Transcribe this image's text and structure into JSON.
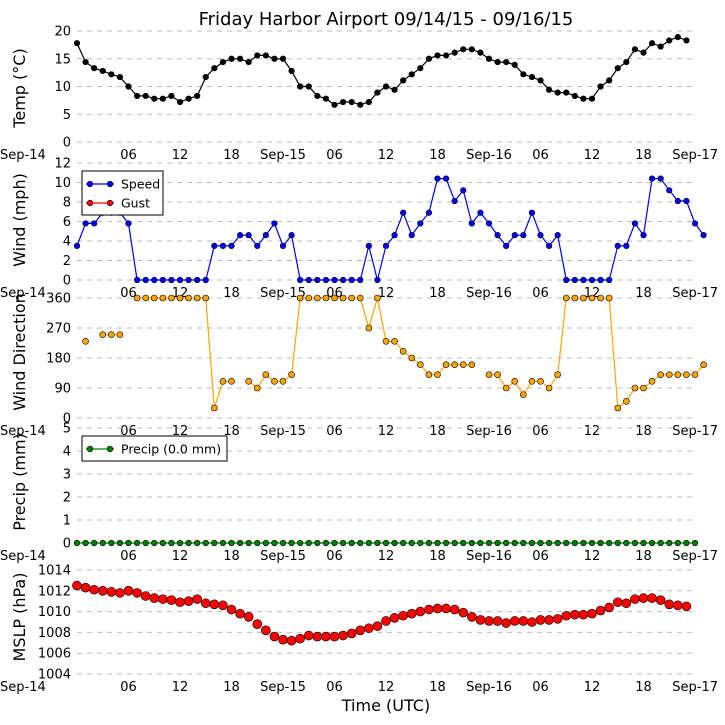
{
  "title": "Friday Harbor Airport 09/14/15 - 09/16/15",
  "xlabel": "Time (UTC)",
  "x_tick_labels": [
    "Sep-14",
    "06",
    "12",
    "18",
    "Sep-15",
    "06",
    "12",
    "18",
    "Sep-16",
    "06",
    "12",
    "18",
    "Sep-17"
  ],
  "x_range_hours": [
    0,
    72
  ],
  "colors": {
    "temp": "#000000",
    "speed": "#0000ff",
    "gust": "#ff0000",
    "direction": "#ffa500",
    "precip": "#008000",
    "mslp": "#ff0000",
    "grid": "#bbbbbb"
  },
  "chart_data": [
    {
      "type": "line",
      "name": "temperature",
      "ylabel": "Temp (°C)",
      "ylim": [
        0,
        20
      ],
      "yticks": [
        0,
        5,
        10,
        15,
        20
      ],
      "grid": true,
      "series": [
        {
          "name": "Temperature",
          "x_start": 0,
          "x_step": 1,
          "values": [
            17.8,
            14.4,
            13.3,
            12.8,
            12.2,
            11.7,
            10.0,
            8.3,
            8.3,
            7.8,
            7.8,
            8.3,
            7.2,
            7.8,
            8.3,
            11.7,
            13.3,
            14.4,
            15.0,
            15.0,
            14.4,
            15.6,
            15.6,
            15.0,
            15.0,
            12.8,
            10.0,
            10.0,
            8.3,
            7.8,
            6.7,
            7.2,
            7.2,
            6.7,
            7.2,
            8.9,
            10.0,
            9.4,
            11.1,
            12.2,
            13.3,
            15.0,
            15.6,
            15.6,
            16.1,
            16.7,
            16.7,
            16.1,
            15.0,
            14.4,
            14.4,
            13.9,
            12.2,
            11.7,
            11.1,
            9.4,
            8.9,
            8.9,
            8.3,
            7.8,
            7.8,
            10.0,
            11.1,
            13.3,
            14.4,
            16.7,
            16.1,
            17.8,
            17.2,
            18.3,
            18.9,
            18.3
          ]
        }
      ]
    },
    {
      "type": "line",
      "name": "wind",
      "ylabel": "Wind (mph)",
      "ylim": [
        0,
        12
      ],
      "yticks": [
        0,
        2,
        4,
        6,
        8,
        10,
        12
      ],
      "grid": true,
      "legend": {
        "placement": "top-left",
        "entries": [
          "Speed",
          "Gust"
        ]
      },
      "series": [
        {
          "name": "Speed",
          "x_start": 0,
          "x_step": 1,
          "values": [
            3.5,
            5.8,
            5.8,
            6.9,
            6.9,
            6.9,
            5.8,
            0,
            0,
            0,
            0,
            0,
            0,
            0,
            0,
            0,
            3.5,
            3.5,
            3.5,
            4.6,
            4.6,
            3.5,
            4.6,
            5.8,
            3.5,
            4.6,
            0,
            0,
            0,
            0,
            0,
            0,
            0,
            0,
            3.5,
            0,
            3.5,
            4.6,
            6.9,
            4.6,
            5.8,
            6.9,
            10.4,
            10.4,
            8.1,
            9.2,
            5.8,
            6.9,
            5.8,
            4.6,
            3.5,
            4.6,
            4.6,
            6.9,
            4.6,
            3.5,
            4.6,
            0,
            0,
            0,
            0,
            0,
            0,
            3.5,
            3.5,
            5.8,
            4.6,
            10.4,
            10.4,
            9.2,
            8.1,
            8.1,
            5.8,
            4.6
          ]
        },
        {
          "name": "Gust",
          "values": []
        }
      ]
    },
    {
      "type": "line",
      "name": "wind_direction",
      "ylabel": "Wind Direction",
      "ylim": [
        0,
        360
      ],
      "yticks": [
        0,
        90,
        180,
        270,
        360
      ],
      "grid": true,
      "series": [
        {
          "name": "Direction",
          "x_start": 1,
          "x_step": 1,
          "values": [
            230,
            null,
            250,
            250,
            250,
            null,
            360,
            360,
            360,
            360,
            360,
            360,
            360,
            360,
            360,
            30,
            110,
            110,
            null,
            110,
            90,
            130,
            110,
            110,
            130,
            360,
            360,
            360,
            360,
            360,
            360,
            360,
            360,
            270,
            360,
            230,
            230,
            200,
            180,
            160,
            130,
            130,
            160,
            160,
            160,
            160,
            null,
            130,
            130,
            90,
            110,
            70,
            110,
            110,
            90,
            130,
            360,
            360,
            360,
            360,
            360,
            360,
            30,
            50,
            90,
            90,
            110,
            130,
            130,
            130,
            130,
            130,
            160
          ]
        }
      ]
    },
    {
      "type": "line",
      "name": "precip",
      "ylabel": "Precip (mm)",
      "ylim": [
        0,
        5
      ],
      "yticks": [
        0,
        1,
        2,
        3,
        4,
        5
      ],
      "grid": true,
      "legend": {
        "placement": "top-left",
        "entries": [
          "Precip (0.0 mm)"
        ]
      },
      "series": [
        {
          "name": "Precip (0.0 mm)",
          "x_start": 0,
          "x_step": 1,
          "constant": 0,
          "count": 73
        }
      ]
    },
    {
      "type": "scatter",
      "name": "mslp",
      "ylabel": "MSLP (hPa)",
      "ylim": [
        1004,
        1014
      ],
      "yticks": [
        1004,
        1006,
        1008,
        1010,
        1012,
        1014
      ],
      "grid": true,
      "series": [
        {
          "name": "MSLP",
          "x_start": 0,
          "x_step": 1,
          "values": [
            1012.5,
            1012.3,
            1012.1,
            1012.0,
            1011.9,
            1011.8,
            1012.0,
            1011.8,
            1011.5,
            1011.3,
            1011.2,
            1011.1,
            1010.9,
            1011.0,
            1011.2,
            1010.8,
            1010.7,
            1010.6,
            1010.2,
            1009.8,
            1009.5,
            1008.8,
            1008.2,
            1007.6,
            1007.3,
            1007.2,
            1007.4,
            1007.7,
            1007.6,
            1007.6,
            1007.6,
            1007.7,
            1007.9,
            1008.2,
            1008.4,
            1008.6,
            1009.1,
            1009.4,
            1009.6,
            1009.8,
            1010.0,
            1010.2,
            1010.3,
            1010.3,
            1010.2,
            1009.9,
            1009.5,
            1009.2,
            1009.1,
            1009.1,
            1008.9,
            1009.1,
            1009.1,
            1009.0,
            1009.2,
            1009.2,
            1009.3,
            1009.6,
            1009.7,
            1009.7,
            1009.8,
            1010.1,
            1010.4,
            1010.9,
            1010.8,
            1011.2,
            1011.3,
            1011.3,
            1011.1,
            1010.7,
            1010.6,
            1010.5
          ]
        }
      ]
    }
  ]
}
